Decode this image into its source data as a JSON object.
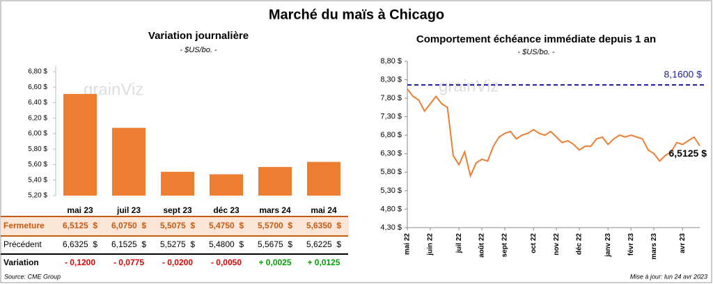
{
  "title": "Marché du maïs à Chicago",
  "watermark": "grainViz",
  "chart_data": [
    {
      "type": "bar",
      "title": "Variation journalière",
      "subtitle": "- $US/bo. -",
      "categories": [
        "mai 23",
        "juil 23",
        "sept 23",
        "déc 23",
        "mars 24",
        "mai 24"
      ],
      "values": [
        6.5125,
        6.075,
        5.5075,
        5.475,
        5.57,
        5.635
      ],
      "color": "#ed7d31",
      "ylim": [
        5.2,
        6.8
      ],
      "yticks": [
        {
          "value": 5.2,
          "label": "5,20 $"
        },
        {
          "value": 5.4,
          "label": "5,40 $"
        },
        {
          "value": 5.6,
          "label": "5,60 $"
        },
        {
          "value": 5.8,
          "label": "5,80 $"
        },
        {
          "value": 6.0,
          "label": "6,00 $"
        },
        {
          "value": 6.2,
          "label": "6,20 $"
        },
        {
          "value": 6.4,
          "label": "6,40 $"
        },
        {
          "value": 6.6,
          "label": "6,60 $"
        },
        {
          "value": 6.8,
          "label": "6,80 $"
        }
      ]
    },
    {
      "type": "line",
      "title": "Comportement  échéance immédiate  depuis 1 an",
      "subtitle": "- $US/bo. -",
      "categories": [
        "mai 22",
        null,
        null,
        null,
        "juin 22",
        null,
        null,
        null,
        null,
        "juil 22",
        null,
        null,
        null,
        "août 22",
        null,
        null,
        null,
        "sept 22",
        null,
        null,
        null,
        null,
        "oct 22",
        null,
        null,
        null,
        "nov 22",
        null,
        null,
        null,
        "déc 22",
        null,
        null,
        null,
        null,
        "janv 23",
        null,
        null,
        null,
        "févr 23",
        null,
        null,
        null,
        "mars 23",
        null,
        null,
        null,
        null,
        "avr 23",
        null,
        null,
        null
      ],
      "series": [
        {
          "name": "Échéance immédiate",
          "color": "#ed7d31",
          "values": [
            8.05,
            7.85,
            7.75,
            7.45,
            7.65,
            7.85,
            7.65,
            7.55,
            6.25,
            6.0,
            6.35,
            5.7,
            6.05,
            6.15,
            6.1,
            6.5,
            6.75,
            6.85,
            6.9,
            6.7,
            6.8,
            6.85,
            6.95,
            6.85,
            6.8,
            6.9,
            6.75,
            6.6,
            6.65,
            6.55,
            6.4,
            6.5,
            6.5,
            6.7,
            6.75,
            6.55,
            6.7,
            6.8,
            6.75,
            6.8,
            6.75,
            6.7,
            6.4,
            6.3,
            6.1,
            6.25,
            6.35,
            6.6,
            6.55,
            6.65,
            6.75,
            6.5125
          ]
        }
      ],
      "last_label": "6,5125 $",
      "reference": {
        "value": 8.16,
        "label": "8,1600 $",
        "color": "#1f1fa8"
      },
      "ylim": [
        4.3,
        8.8
      ],
      "yticks": [
        {
          "value": 4.3,
          "label": "4,30 $"
        },
        {
          "value": 4.8,
          "label": "4,80 $"
        },
        {
          "value": 5.3,
          "label": "5,30 $"
        },
        {
          "value": 5.8,
          "label": "5,80 $"
        },
        {
          "value": 6.3,
          "label": "6,30 $"
        },
        {
          "value": 6.8,
          "label": "6,80 $"
        },
        {
          "value": 7.3,
          "label": "7,30 $"
        },
        {
          "value": 7.8,
          "label": "7,80 $"
        },
        {
          "value": 8.3,
          "label": "8,30 $"
        },
        {
          "value": 8.8,
          "label": "8,80 $"
        }
      ]
    }
  ],
  "table": {
    "rows": [
      {
        "label": "Fermeture",
        "cells": [
          "6,5125  $",
          "6,0750  $",
          "5,5075  $",
          "5,4750  $",
          "5,5700  $",
          "5,6350  $"
        ],
        "color": "#c55a11"
      },
      {
        "label": "Précédent",
        "cells": [
          "6,6325  $",
          "6,1525  $",
          "5,5275  $",
          "5,4800  $",
          "5,5675  $",
          "5,6225  $"
        ],
        "color": "#000000"
      },
      {
        "label": "Variation",
        "cells": [
          "- 0,1200",
          "- 0,0775",
          "- 0,0200",
          "- 0,0050",
          "+ 0,0025",
          "+ 0,0125"
        ],
        "colors": [
          "#e00000",
          "#e00000",
          "#e00000",
          "#e00000",
          "#00a000",
          "#00a000"
        ]
      }
    ]
  },
  "footer": {
    "source": "Source: CME Group",
    "updated": "Mise à jour: lun 24 avr 2023"
  }
}
